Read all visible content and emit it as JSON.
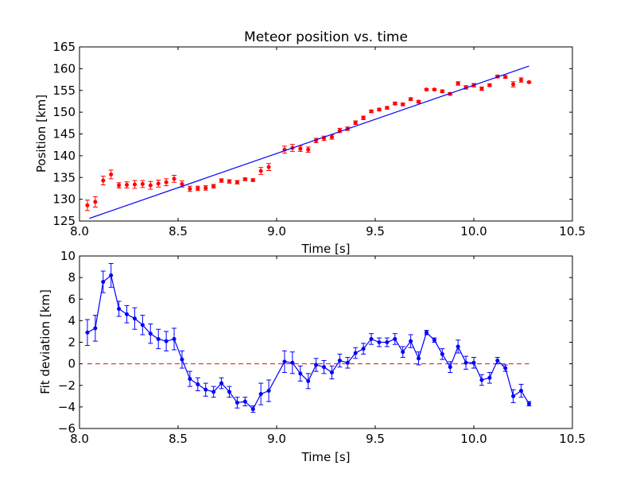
{
  "chart_data": [
    {
      "type": "scatter",
      "title": "Meteor position vs. time",
      "xlabel": "Time [s]",
      "ylabel": "Position [km]",
      "xlim": [
        8.0,
        10.5
      ],
      "ylim": [
        125,
        165
      ],
      "x_ticks": [
        8.0,
        8.5,
        9.0,
        9.5,
        10.0,
        10.5
      ],
      "y_ticks": [
        125,
        130,
        135,
        140,
        145,
        150,
        155,
        160,
        165
      ],
      "x_tick_labels": [
        "8.0",
        "8.5",
        "9.0",
        "9.5",
        "10.0",
        "10.5"
      ],
      "y_tick_labels": [
        "125",
        "130",
        "135",
        "140",
        "145",
        "150",
        "155",
        "160",
        "165"
      ],
      "grid": false,
      "series": [
        {
          "kind": "errorbar-points",
          "color": "#ff0000",
          "x": [
            8.04,
            8.08,
            8.12,
            8.16,
            8.2,
            8.24,
            8.28,
            8.32,
            8.36,
            8.4,
            8.44,
            8.48,
            8.52,
            8.56,
            8.6,
            8.64,
            8.68,
            8.72,
            8.76,
            8.8,
            8.84,
            8.88,
            8.92,
            8.96,
            9.04,
            9.08,
            9.12,
            9.16,
            9.2,
            9.24,
            9.28,
            9.32,
            9.36,
            9.4,
            9.44,
            9.48,
            9.52,
            9.56,
            9.6,
            9.64,
            9.68,
            9.72,
            9.76,
            9.8,
            9.84,
            9.88,
            9.92,
            9.96,
            10.0,
            10.04,
            10.08,
            10.12,
            10.16,
            10.2,
            10.24,
            10.28
          ],
          "y": [
            128.6,
            129.4,
            134.3,
            135.7,
            133.2,
            133.3,
            133.4,
            133.5,
            133.2,
            133.6,
            133.9,
            134.7,
            133.5,
            132.4,
            132.5,
            132.6,
            133.0,
            134.3,
            134.1,
            133.9,
            134.6,
            134.4,
            136.5,
            137.4,
            141.4,
            141.8,
            141.6,
            141.4,
            143.5,
            144.0,
            144.3,
            145.8,
            146.2,
            147.6,
            148.7,
            150.2,
            150.6,
            151.0,
            152.0,
            151.8,
            153.0,
            152.4,
            155.2,
            155.2,
            154.8,
            154.2,
            156.6,
            155.7,
            156.2,
            155.4,
            156.2,
            158.2,
            158.1,
            156.4,
            157.4,
            156.9
          ],
          "yerr": [
            1.2,
            1.2,
            1.0,
            1.0,
            0.6,
            0.7,
            0.9,
            0.8,
            0.9,
            0.8,
            0.8,
            0.8,
            0.7,
            0.6,
            0.5,
            0.5,
            0.4,
            0.4,
            0.4,
            0.4,
            0.3,
            0.3,
            0.8,
            0.8,
            0.8,
            0.8,
            0.6,
            0.6,
            0.5,
            0.5,
            0.5,
            0.5,
            0.4,
            0.4,
            0.4,
            0.3,
            0.3,
            0.3,
            0.3,
            0.3,
            0.3,
            0.3,
            0.2,
            0.2,
            0.3,
            0.3,
            0.4,
            0.4,
            0.4,
            0.4,
            0.3,
            0.3,
            0.3,
            0.6,
            0.5,
            0.2
          ]
        },
        {
          "kind": "fit-line",
          "color": "#0000ff",
          "x": [
            8.05,
            10.28
          ],
          "y": [
            125.6,
            160.6
          ]
        }
      ]
    },
    {
      "type": "line",
      "title": "",
      "xlabel": "Time [s]",
      "ylabel": "Fit deviation [km]",
      "xlim": [
        8.0,
        10.5
      ],
      "ylim": [
        -6,
        10
      ],
      "x_ticks": [
        8.0,
        8.5,
        9.0,
        9.5,
        10.0,
        10.5
      ],
      "y_ticks": [
        -6,
        -4,
        -2,
        0,
        2,
        4,
        6,
        8,
        10
      ],
      "x_tick_labels": [
        "8.0",
        "8.5",
        "9.0",
        "9.5",
        "10.0",
        "10.5"
      ],
      "y_tick_labels": [
        "−6",
        "−4",
        "−2",
        "0",
        "2",
        "4",
        "6",
        "8",
        "10"
      ],
      "grid": false,
      "reference_line": {
        "y": 0,
        "color": "#ff0000",
        "style": "dashed"
      },
      "series": [
        {
          "kind": "errorbar-line",
          "color": "#0000ff",
          "x": [
            8.04,
            8.08,
            8.12,
            8.16,
            8.2,
            8.24,
            8.28,
            8.32,
            8.36,
            8.4,
            8.44,
            8.48,
            8.52,
            8.56,
            8.6,
            8.64,
            8.68,
            8.72,
            8.76,
            8.8,
            8.84,
            8.88,
            8.92,
            8.96,
            9.04,
            9.08,
            9.12,
            9.16,
            9.2,
            9.24,
            9.28,
            9.32,
            9.36,
            9.4,
            9.44,
            9.48,
            9.52,
            9.56,
            9.6,
            9.64,
            9.68,
            9.72,
            9.76,
            9.8,
            9.84,
            9.88,
            9.92,
            9.96,
            10.0,
            10.04,
            10.08,
            10.12,
            10.16,
            10.2,
            10.24,
            10.28
          ],
          "y": [
            2.9,
            3.3,
            7.6,
            8.2,
            5.1,
            4.6,
            4.2,
            3.6,
            2.8,
            2.3,
            2.1,
            2.3,
            0.4,
            -1.4,
            -1.9,
            -2.4,
            -2.6,
            -1.8,
            -2.6,
            -3.6,
            -3.5,
            -4.2,
            -2.8,
            -2.5,
            0.2,
            0.1,
            -0.9,
            -1.6,
            -0.1,
            -0.3,
            -0.8,
            0.3,
            0.1,
            1.0,
            1.4,
            2.3,
            2.0,
            2.0,
            2.3,
            1.1,
            2.1,
            0.5,
            2.9,
            2.2,
            0.9,
            -0.3,
            1.6,
            0.1,
            0.1,
            -1.5,
            -1.3,
            0.3,
            -0.4,
            -3.0,
            -2.5,
            -3.7
          ],
          "yerr": [
            1.2,
            1.2,
            1.0,
            1.1,
            0.7,
            0.8,
            1.0,
            0.9,
            0.9,
            0.9,
            0.9,
            1.0,
            0.8,
            0.7,
            0.6,
            0.6,
            0.5,
            0.5,
            0.5,
            0.5,
            0.4,
            0.3,
            1.0,
            1.0,
            1.0,
            1.0,
            0.7,
            0.7,
            0.6,
            0.6,
            0.6,
            0.6,
            0.5,
            0.5,
            0.5,
            0.5,
            0.4,
            0.4,
            0.5,
            0.5,
            0.6,
            0.6,
            0.2,
            0.2,
            0.5,
            0.5,
            0.6,
            0.6,
            0.5,
            0.5,
            0.5,
            0.3,
            0.3,
            0.6,
            0.6,
            0.2
          ]
        }
      ]
    }
  ]
}
